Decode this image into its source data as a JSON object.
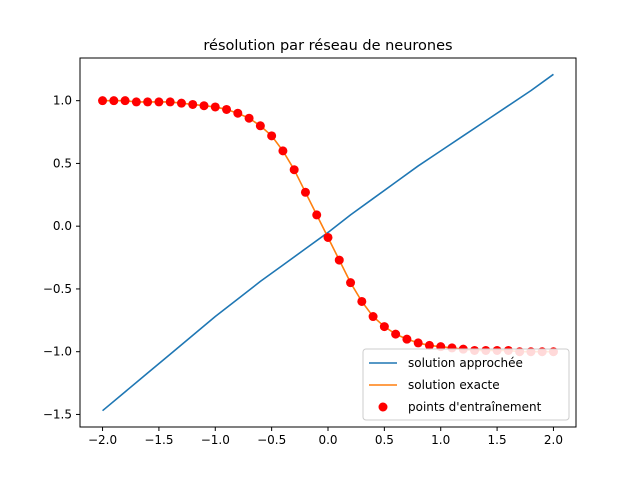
{
  "chart_data": {
    "type": "line",
    "title": "résolution par réseau de neurones",
    "xlabel": "",
    "ylabel": "",
    "xlim": [
      -2.2,
      2.2
    ],
    "ylim": [
      -1.6,
      1.34
    ],
    "grid": false,
    "legend_position": "lower-right",
    "x_ticks": [
      -2.0,
      -1.5,
      -1.0,
      -0.5,
      0.0,
      0.5,
      1.0,
      1.5,
      2.0
    ],
    "x_tick_labels": [
      "−2.0",
      "−1.5",
      "−1.0",
      "−0.5",
      "0.0",
      "0.5",
      "1.0",
      "1.5",
      "2.0"
    ],
    "y_ticks": [
      1.0,
      0.5,
      0.0,
      -0.5,
      -1.0,
      -1.5
    ],
    "y_tick_labels": [
      "1.0",
      "0.5",
      "0.0",
      "−0.5",
      "−1.0",
      "−1.5"
    ],
    "series": [
      {
        "name": "solution approchée",
        "kind": "line",
        "color": "#1f77b4",
        "x": [
          -2.0,
          -1.8,
          -1.6,
          -1.4,
          -1.2,
          -1.0,
          -0.8,
          -0.6,
          -0.4,
          -0.2,
          0.0,
          0.2,
          0.4,
          0.6,
          0.8,
          1.0,
          1.2,
          1.4,
          1.6,
          1.8,
          2.0
        ],
        "y": [
          -1.47,
          -1.32,
          -1.17,
          -1.02,
          -0.87,
          -0.72,
          -0.58,
          -0.44,
          -0.31,
          -0.18,
          -0.05,
          0.09,
          0.22,
          0.35,
          0.48,
          0.6,
          0.72,
          0.84,
          0.96,
          1.08,
          1.21
        ]
      },
      {
        "name": "solution exacte",
        "kind": "line",
        "color": "#ff7f0e",
        "x": [
          -2.0,
          -1.9,
          -1.8,
          -1.7,
          -1.6,
          -1.5,
          -1.4,
          -1.3,
          -1.2,
          -1.1,
          -1.0,
          -0.9,
          -0.8,
          -0.7,
          -0.6,
          -0.5,
          -0.4,
          -0.3,
          -0.2,
          -0.1,
          0.0,
          0.1,
          0.2,
          0.3,
          0.4,
          0.5,
          0.6,
          0.7,
          0.8,
          0.9,
          1.0,
          1.1,
          1.2,
          1.3,
          1.4,
          1.5,
          1.6,
          1.7,
          1.8,
          1.9,
          2.0
        ],
        "y": [
          1.0,
          1.0,
          1.0,
          0.99,
          0.99,
          0.99,
          0.99,
          0.98,
          0.97,
          0.96,
          0.95,
          0.93,
          0.9,
          0.86,
          0.8,
          0.72,
          0.6,
          0.45,
          0.27,
          0.09,
          -0.09,
          -0.27,
          -0.45,
          -0.6,
          -0.72,
          -0.8,
          -0.86,
          -0.9,
          -0.93,
          -0.95,
          -0.96,
          -0.97,
          -0.98,
          -0.99,
          -0.99,
          -0.99,
          -0.99,
          -1.0,
          -1.0,
          -1.0,
          -1.0
        ]
      },
      {
        "name": "points d'entraînement",
        "kind": "scatter",
        "color": "#ff0000",
        "x": [
          -2.0,
          -1.9,
          -1.8,
          -1.7,
          -1.6,
          -1.5,
          -1.4,
          -1.3,
          -1.2,
          -1.1,
          -1.0,
          -0.9,
          -0.8,
          -0.7,
          -0.6,
          -0.5,
          -0.4,
          -0.3,
          -0.2,
          -0.1,
          0.0,
          0.1,
          0.2,
          0.3,
          0.4,
          0.5,
          0.6,
          0.7,
          0.8,
          0.9,
          1.0,
          1.1,
          1.2,
          1.3,
          1.4,
          1.5,
          1.6,
          1.7,
          1.8,
          1.9,
          2.0
        ],
        "y": [
          1.0,
          1.0,
          1.0,
          0.99,
          0.99,
          0.99,
          0.99,
          0.98,
          0.97,
          0.96,
          0.95,
          0.93,
          0.9,
          0.86,
          0.8,
          0.72,
          0.6,
          0.45,
          0.27,
          0.09,
          -0.09,
          -0.27,
          -0.45,
          -0.6,
          -0.72,
          -0.8,
          -0.86,
          -0.9,
          -0.93,
          -0.95,
          -0.96,
          -0.97,
          -0.98,
          -0.99,
          -0.99,
          -0.99,
          -0.99,
          -1.0,
          -1.0,
          -1.0,
          -1.0
        ]
      }
    ]
  }
}
